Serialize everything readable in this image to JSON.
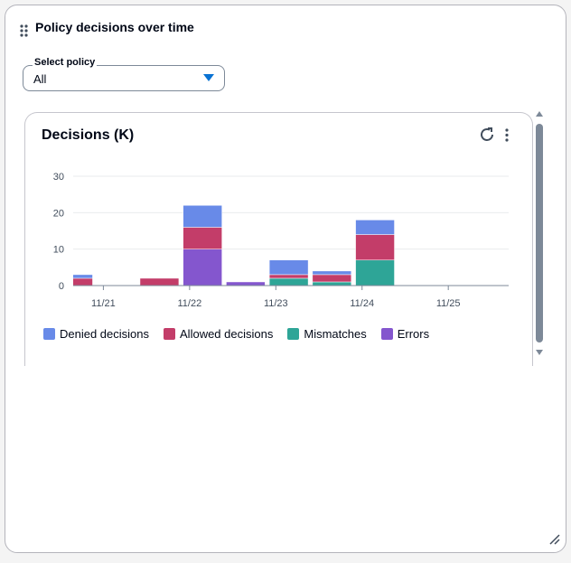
{
  "panel": {
    "title": "Policy decisions over time",
    "select_label": "Select policy",
    "select_value": "All"
  },
  "chart_data": {
    "type": "bar",
    "stacked": true,
    "title": "Decisions (K)",
    "x": [
      20.65,
      21.65,
      22.15,
      22.65,
      23.15,
      23.65,
      24.15
    ],
    "xlim": [
      20.65,
      25.7
    ],
    "xticks": [
      {
        "value": 21,
        "label": "11/21"
      },
      {
        "value": 22,
        "label": "11/22"
      },
      {
        "value": 23,
        "label": "11/23"
      },
      {
        "value": 24,
        "label": "11/24"
      },
      {
        "value": 25,
        "label": "11/25"
      }
    ],
    "bar_width": 0.45,
    "ylim": [
      0,
      30
    ],
    "yticks": [
      0,
      10,
      20,
      30
    ],
    "grid": true,
    "legend": "bottom",
    "series": [
      {
        "name": "Denied decisions",
        "color": "#688ae8",
        "values": [
          1,
          0,
          6,
          0,
          4,
          1,
          4
        ]
      },
      {
        "name": "Allowed decisions",
        "color": "#c33d69",
        "values": [
          2,
          2,
          6,
          0,
          1,
          2,
          7
        ]
      },
      {
        "name": "Mismatches",
        "color": "#2ea597",
        "values": [
          0,
          0,
          0,
          0,
          2,
          1,
          7
        ]
      },
      {
        "name": "Errors",
        "color": "#8456ce",
        "values": [
          0,
          0,
          10,
          1,
          0,
          0,
          0
        ]
      }
    ]
  }
}
